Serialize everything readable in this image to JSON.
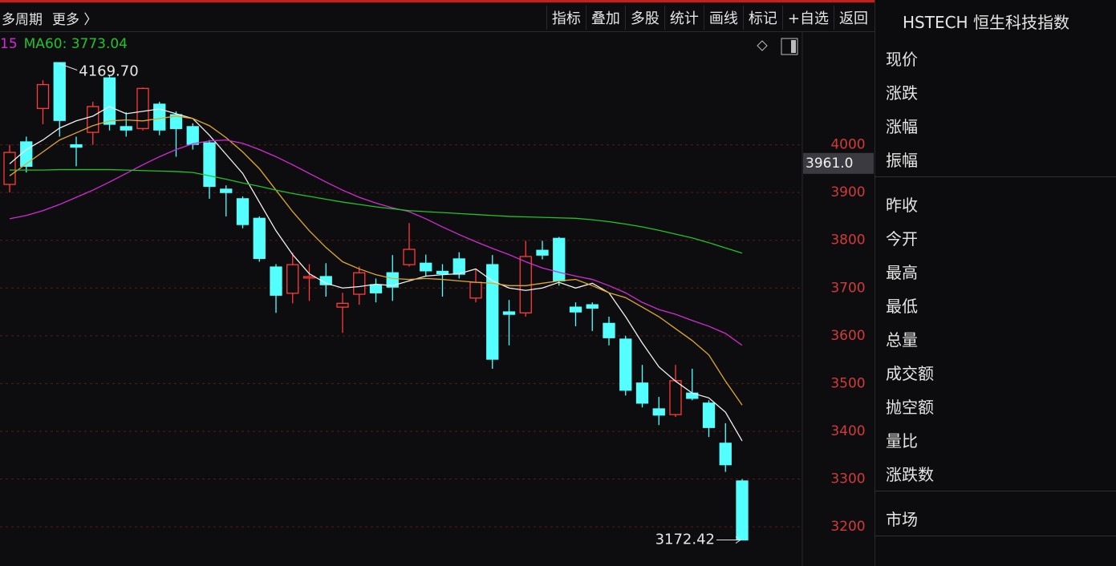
{
  "toolbar": {
    "left": [
      "多周期",
      "更多 〉"
    ],
    "buttons": [
      "指标",
      "叠加",
      "多股",
      "统计",
      "画线",
      "标记",
      "+自选",
      "返回"
    ]
  },
  "chart_data": {
    "type": "candlestick",
    "ma_legend": [
      {
        "text": "15",
        "color": "#d32bd3"
      },
      {
        "text": "MA60: 3773.04",
        "color": "#22c22a"
      }
    ],
    "open": [
      3917,
      4006,
      4076,
      4172,
      4000,
      4026,
      4140,
      4038,
      4034,
      4085,
      4063,
      4038,
      4004,
      3907,
      3887,
      3846,
      3744,
      3689,
      3721,
      3724,
      3660,
      3687,
      3707,
      3732,
      3749,
      3752,
      3735,
      3761,
      3679,
      3749,
      3650,
      3648,
      3779,
      3804,
      3660,
      3665,
      3626,
      3593,
      3501,
      3447,
      3435,
      3480,
      3459,
      3375,
      3296
    ],
    "high": [
      4000,
      4017,
      4135,
      4169.7,
      4017,
      4090,
      4145,
      4068,
      4120,
      4090,
      4070,
      4045,
      4010,
      3915,
      3892,
      3850,
      3750,
      3774,
      3750,
      3752,
      3690,
      3745,
      3720,
      3769,
      3836,
      3770,
      3750,
      3775,
      3740,
      3769,
      3675,
      3799,
      3799,
      3807,
      3670,
      3670,
      3640,
      3600,
      3539,
      3472,
      3539,
      3531,
      3465,
      3417,
      3300
    ],
    "low": [
      3900,
      3942,
      4043,
      4017,
      3955,
      4000,
      4030,
      4017,
      4030,
      4020,
      3975,
      3990,
      3887,
      3850,
      3825,
      3755,
      3648,
      3668,
      3673,
      3682,
      3606,
      3665,
      3670,
      3673,
      3745,
      3725,
      3682,
      3720,
      3670,
      3531,
      3580,
      3640,
      3760,
      3705,
      3620,
      3610,
      3580,
      3475,
      3450,
      3413,
      3430,
      3465,
      3388,
      3315,
      3172.42
    ],
    "close": [
      3984,
      3955,
      4126,
      4051,
      3995,
      4080,
      4043,
      4031,
      4118,
      4031,
      4034,
      4001,
      3913,
      3900,
      3833,
      3762,
      3685,
      3749,
      3724,
      3707,
      3668,
      3732,
      3690,
      3702,
      3781,
      3736,
      3730,
      3729,
      3712,
      3551,
      3645,
      3766,
      3769,
      3715,
      3650,
      3658,
      3596,
      3486,
      3459,
      3434,
      3506,
      3469,
      3408,
      3330,
      3172.42
    ],
    "up_color": "#ff3b3b",
    "down_color": "#54ffff",
    "series": [
      {
        "color": "#f0f0f0",
        "values": [
          3960,
          3990,
          4010,
          4035,
          4050,
          4060,
          4080,
          4065,
          4070,
          4075,
          4065,
          4055,
          4020,
          3980,
          3940,
          3880,
          3820,
          3770,
          3730,
          3710,
          3700,
          3703,
          3708,
          3705,
          3715,
          3725,
          3728,
          3730,
          3740,
          3715,
          3700,
          3695,
          3700,
          3712,
          3700,
          3710,
          3690,
          3640,
          3585,
          3535,
          3505,
          3480,
          3470,
          3440,
          3380
        ]
      },
      {
        "color": "#e0a82a",
        "values": [
          3935,
          3960,
          3985,
          4010,
          4025,
          4040,
          4050,
          4052,
          4050,
          4055,
          4060,
          4055,
          4040,
          4015,
          3985,
          3950,
          3905,
          3860,
          3820,
          3785,
          3755,
          3740,
          3728,
          3720,
          3718,
          3720,
          3718,
          3715,
          3712,
          3710,
          3705,
          3705,
          3710,
          3715,
          3718,
          3705,
          3690,
          3680,
          3660,
          3640,
          3615,
          3590,
          3560,
          3505,
          3455
        ]
      },
      {
        "color": "#d32bd3",
        "values": [
          3845,
          3852,
          3862,
          3875,
          3890,
          3905,
          3922,
          3940,
          3958,
          3975,
          3990,
          4002,
          4008,
          4010,
          4003,
          3990,
          3975,
          3958,
          3940,
          3922,
          3905,
          3890,
          3878,
          3868,
          3860,
          3845,
          3828,
          3812,
          3797,
          3783,
          3770,
          3755,
          3742,
          3733,
          3725,
          3718,
          3705,
          3690,
          3670,
          3655,
          3645,
          3632,
          3620,
          3605,
          3580
        ]
      },
      {
        "color": "#22c22a",
        "values": [
          3947,
          3947,
          3947,
          3948,
          3948,
          3948,
          3948,
          3947,
          3946,
          3945,
          3944,
          3942,
          3935,
          3928,
          3920,
          3913,
          3905,
          3898,
          3892,
          3886,
          3880,
          3875,
          3870,
          3866,
          3862,
          3860,
          3858,
          3856,
          3854,
          3852,
          3850,
          3849,
          3848,
          3847,
          3846,
          3843,
          3839,
          3834,
          3828,
          3821,
          3813,
          3805,
          3795,
          3784,
          3773.04
        ]
      }
    ],
    "ylim": [
      3128,
      4236
    ],
    "yticks": [
      3200,
      3300,
      3400,
      3500,
      3600,
      3700,
      3800,
      3900,
      4000
    ],
    "grid": true,
    "annotations": [
      "4169.70",
      "3172.42"
    ],
    "cursor_label": {
      "value": 3961,
      "label": "3961.0"
    }
  },
  "sidebar": {
    "title": "HSTECH 恒生科技指数",
    "groups": [
      [
        "现价",
        "涨跌",
        "涨幅",
        "振幅"
      ],
      [
        "昨收",
        "今开",
        "最高",
        "最低",
        "总量",
        "成交额",
        "抛空额",
        "量比",
        "涨跌数"
      ],
      [
        "市场"
      ]
    ]
  }
}
